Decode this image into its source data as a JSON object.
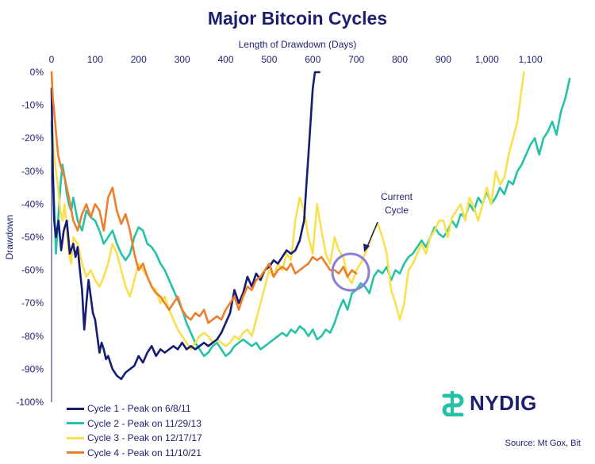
{
  "chart_data": {
    "type": "line",
    "title": "Major Bitcoin Cycles",
    "xlabel": "Length of Drawdown (Days)",
    "ylabel": "Drawdown",
    "xlim": [
      0,
      1190
    ],
    "ylim": [
      -100,
      0
    ],
    "x_ticks": [
      "0",
      "100",
      "200",
      "300",
      "400",
      "500",
      "600",
      "700",
      "800",
      "900",
      "1,000",
      "1,100"
    ],
    "y_ticks": [
      "0%",
      "-10%",
      "-20%",
      "-30%",
      "-40%",
      "-50%",
      "-60%",
      "-70%",
      "-80%",
      "-90%",
      "-100%"
    ],
    "grid": false,
    "legend": "bottom-left",
    "series": [
      {
        "name": "Cycle 1 - Peak on 6/8/11",
        "color": "#141c73",
        "x": [
          0,
          3,
          6,
          10,
          16,
          22,
          28,
          35,
          42,
          50,
          55,
          60,
          65,
          70,
          75,
          80,
          85,
          90,
          95,
          100,
          105,
          110,
          115,
          120,
          125,
          130,
          140,
          150,
          160,
          170,
          180,
          190,
          200,
          210,
          220,
          230,
          240,
          250,
          260,
          270,
          280,
          290,
          300,
          310,
          320,
          330,
          340,
          350,
          360,
          370,
          380,
          390,
          400,
          410,
          420,
          430,
          440,
          450,
          460,
          470,
          480,
          490,
          500,
          510,
          520,
          530,
          540,
          550,
          560,
          570,
          575,
          580,
          585,
          590,
          595,
          600,
          605,
          610,
          615
        ],
        "y": [
          -5,
          -30,
          -45,
          -50,
          -45,
          -54,
          -48,
          -45,
          -55,
          -52,
          -56,
          -53,
          -60,
          -66,
          -78,
          -70,
          -63,
          -68,
          -73,
          -75,
          -80,
          -85,
          -82,
          -84,
          -87,
          -86,
          -90,
          -92,
          -93,
          -91,
          -90,
          -89,
          -86,
          -88,
          -85,
          -83,
          -86,
          -84,
          -85,
          -84,
          -83,
          -84,
          -82,
          -84,
          -83,
          -84,
          -83,
          -82,
          -83,
          -82,
          -81,
          -79,
          -76,
          -73,
          -66,
          -70,
          -67,
          -62,
          -65,
          -61,
          -63,
          -60,
          -59,
          -57,
          -58,
          -56,
          -54,
          -55,
          -54,
          -51,
          -48,
          -45,
          -35,
          -25,
          -15,
          -5,
          0,
          0,
          0
        ]
      },
      {
        "name": "Cycle 2 - Peak on 11/29/13",
        "color": "#26c2a7",
        "x": [
          0,
          3,
          6,
          10,
          15,
          20,
          25,
          30,
          35,
          40,
          45,
          50,
          60,
          70,
          80,
          90,
          100,
          110,
          120,
          130,
          140,
          150,
          160,
          170,
          180,
          190,
          200,
          210,
          220,
          230,
          240,
          250,
          260,
          270,
          280,
          290,
          300,
          310,
          320,
          330,
          340,
          350,
          360,
          370,
          380,
          390,
          400,
          410,
          420,
          430,
          440,
          450,
          460,
          470,
          480,
          490,
          500,
          510,
          520,
          530,
          540,
          550,
          560,
          570,
          580,
          590,
          600,
          610,
          620,
          630,
          640,
          650,
          660,
          670,
          680,
          690,
          700,
          710,
          720,
          730,
          740,
          750,
          760,
          770,
          780,
          790,
          800,
          810,
          820,
          830,
          840,
          850,
          860,
          870,
          880,
          890,
          900,
          910,
          920,
          930,
          940,
          950,
          960,
          970,
          980,
          990,
          1000,
          1010,
          1020,
          1030,
          1040,
          1050,
          1060,
          1070,
          1080,
          1090,
          1100,
          1110,
          1120,
          1130,
          1140,
          1150,
          1160,
          1170,
          1180,
          1185,
          1190
        ],
        "y": [
          -15,
          -30,
          -40,
          -55,
          -45,
          -35,
          -28,
          -32,
          -37,
          -40,
          -42,
          -38,
          -45,
          -48,
          -42,
          -44,
          -45,
          -48,
          -52,
          -50,
          -48,
          -52,
          -55,
          -57,
          -55,
          -50,
          -47,
          -48,
          -52,
          -53,
          -55,
          -58,
          -60,
          -63,
          -66,
          -69,
          -72,
          -76,
          -79,
          -82,
          -84,
          -86,
          -85,
          -83,
          -82,
          -84,
          -86,
          -85,
          -83,
          -82,
          -81,
          -82,
          -83,
          -82,
          -84,
          -83,
          -82,
          -81,
          -80,
          -79,
          -80,
          -78,
          -79,
          -77,
          -78,
          -80,
          -78,
          -81,
          -80,
          -78,
          -79,
          -76,
          -72,
          -69,
          -72,
          -67,
          -66,
          -64,
          -65,
          -67,
          -62,
          -60,
          -61,
          -59,
          -63,
          -60,
          -61,
          -58,
          -56,
          -55,
          -53,
          -51,
          -53,
          -50,
          -47,
          -49,
          -50,
          -48,
          -45,
          -47,
          -43,
          -44,
          -40,
          -42,
          -38,
          -40,
          -36,
          -40,
          -38,
          -35,
          -37,
          -33,
          -34,
          -30,
          -28,
          -25,
          -22,
          -20,
          -25,
          -20,
          -18,
          -15,
          -19,
          -12,
          -8,
          -5,
          -2
        ]
      },
      {
        "name": "Cycle 3 - Peak on 12/17/17",
        "color": "#f8e04e",
        "x": [
          0,
          3,
          6,
          10,
          15,
          20,
          25,
          30,
          35,
          40,
          45,
          50,
          60,
          70,
          80,
          90,
          100,
          110,
          120,
          130,
          140,
          150,
          160,
          170,
          180,
          190,
          200,
          210,
          220,
          230,
          240,
          250,
          260,
          270,
          280,
          290,
          300,
          310,
          320,
          330,
          340,
          350,
          360,
          370,
          380,
          390,
          400,
          410,
          420,
          430,
          440,
          450,
          460,
          470,
          480,
          490,
          500,
          510,
          520,
          530,
          540,
          550,
          560,
          570,
          580,
          590,
          600,
          610,
          620,
          630,
          640,
          650,
          660,
          670,
          680,
          690,
          700,
          710,
          720,
          730,
          740,
          750,
          760,
          770,
          780,
          790,
          800,
          810,
          820,
          830,
          840,
          850,
          860,
          870,
          880,
          890,
          900,
          910,
          920,
          930,
          940,
          950,
          960,
          970,
          980,
          990,
          1000,
          1010,
          1020,
          1030,
          1040,
          1050,
          1060,
          1070,
          1075,
          1080,
          1085
        ],
        "y": [
          -10,
          -20,
          -25,
          -30,
          -35,
          -42,
          -45,
          -40,
          -48,
          -55,
          -58,
          -50,
          -52,
          -58,
          -62,
          -60,
          -63,
          -65,
          -62,
          -58,
          -52,
          -55,
          -60,
          -65,
          -68,
          -63,
          -58,
          -60,
          -62,
          -65,
          -66,
          -70,
          -68,
          -72,
          -75,
          -78,
          -80,
          -82,
          -84,
          -82,
          -80,
          -79,
          -80,
          -82,
          -81,
          -82,
          -83,
          -82,
          -80,
          -81,
          -79,
          -78,
          -80,
          -75,
          -70,
          -65,
          -60,
          -62,
          -58,
          -60,
          -55,
          -57,
          -45,
          -38,
          -42,
          -50,
          -55,
          -40,
          -48,
          -55,
          -58,
          -50,
          -54,
          -56,
          -62,
          -64,
          -60,
          -58,
          -55,
          -52,
          -48,
          -46,
          -50,
          -55,
          -66,
          -70,
          -75,
          -70,
          -60,
          -58,
          -55,
          -52,
          -55,
          -50,
          -48,
          -45,
          -45,
          -50,
          -44,
          -42,
          -40,
          -45,
          -38,
          -41,
          -45,
          -40,
          -35,
          -40,
          -30,
          -34,
          -32,
          -25,
          -20,
          -15,
          -10,
          -5,
          0
        ]
      },
      {
        "name": "Cycle 4 - Peak on 11/10/21",
        "color": "#ee7e2c",
        "x": [
          0,
          3,
          6,
          10,
          15,
          20,
          25,
          30,
          40,
          50,
          60,
          70,
          80,
          90,
          100,
          110,
          120,
          130,
          140,
          150,
          160,
          170,
          180,
          190,
          200,
          210,
          220,
          230,
          240,
          250,
          260,
          270,
          280,
          290,
          300,
          310,
          320,
          330,
          340,
          350,
          360,
          370,
          380,
          390,
          400,
          410,
          420,
          430,
          440,
          450,
          460,
          470,
          480,
          490,
          500,
          510,
          520,
          530,
          540,
          550,
          560,
          570,
          580,
          590,
          600,
          610,
          620,
          630,
          640,
          650,
          660,
          670,
          680,
          690,
          700
        ],
        "y": [
          0,
          -8,
          -12,
          -18,
          -25,
          -28,
          -30,
          -32,
          -38,
          -45,
          -48,
          -43,
          -40,
          -44,
          -40,
          -42,
          -48,
          -38,
          -35,
          -42,
          -46,
          -43,
          -48,
          -55,
          -60,
          -58,
          -62,
          -65,
          -67,
          -68,
          -70,
          -72,
          -70,
          -68,
          -72,
          -74,
          -75,
          -73,
          -74,
          -72,
          -76,
          -75,
          -74,
          -75,
          -72,
          -70,
          -68,
          -72,
          -68,
          -65,
          -66,
          -63,
          -62,
          -60,
          -58,
          -62,
          -60,
          -59,
          -60,
          -58,
          -61,
          -60,
          -59,
          -58,
          -56,
          -57,
          -56,
          -58,
          -60,
          -60,
          -61,
          -59,
          -62,
          -60,
          -61
        ]
      }
    ]
  },
  "annotation": {
    "line1": "Current",
    "line2": "Cycle"
  },
  "logo": {
    "text": "NYDIG"
  },
  "source": "Source: Mt Gox, Bit",
  "colors": {
    "text": "#1b1f6e",
    "highlight_circle": "#8b7fd6",
    "logo_icon": "#26c2a7"
  }
}
